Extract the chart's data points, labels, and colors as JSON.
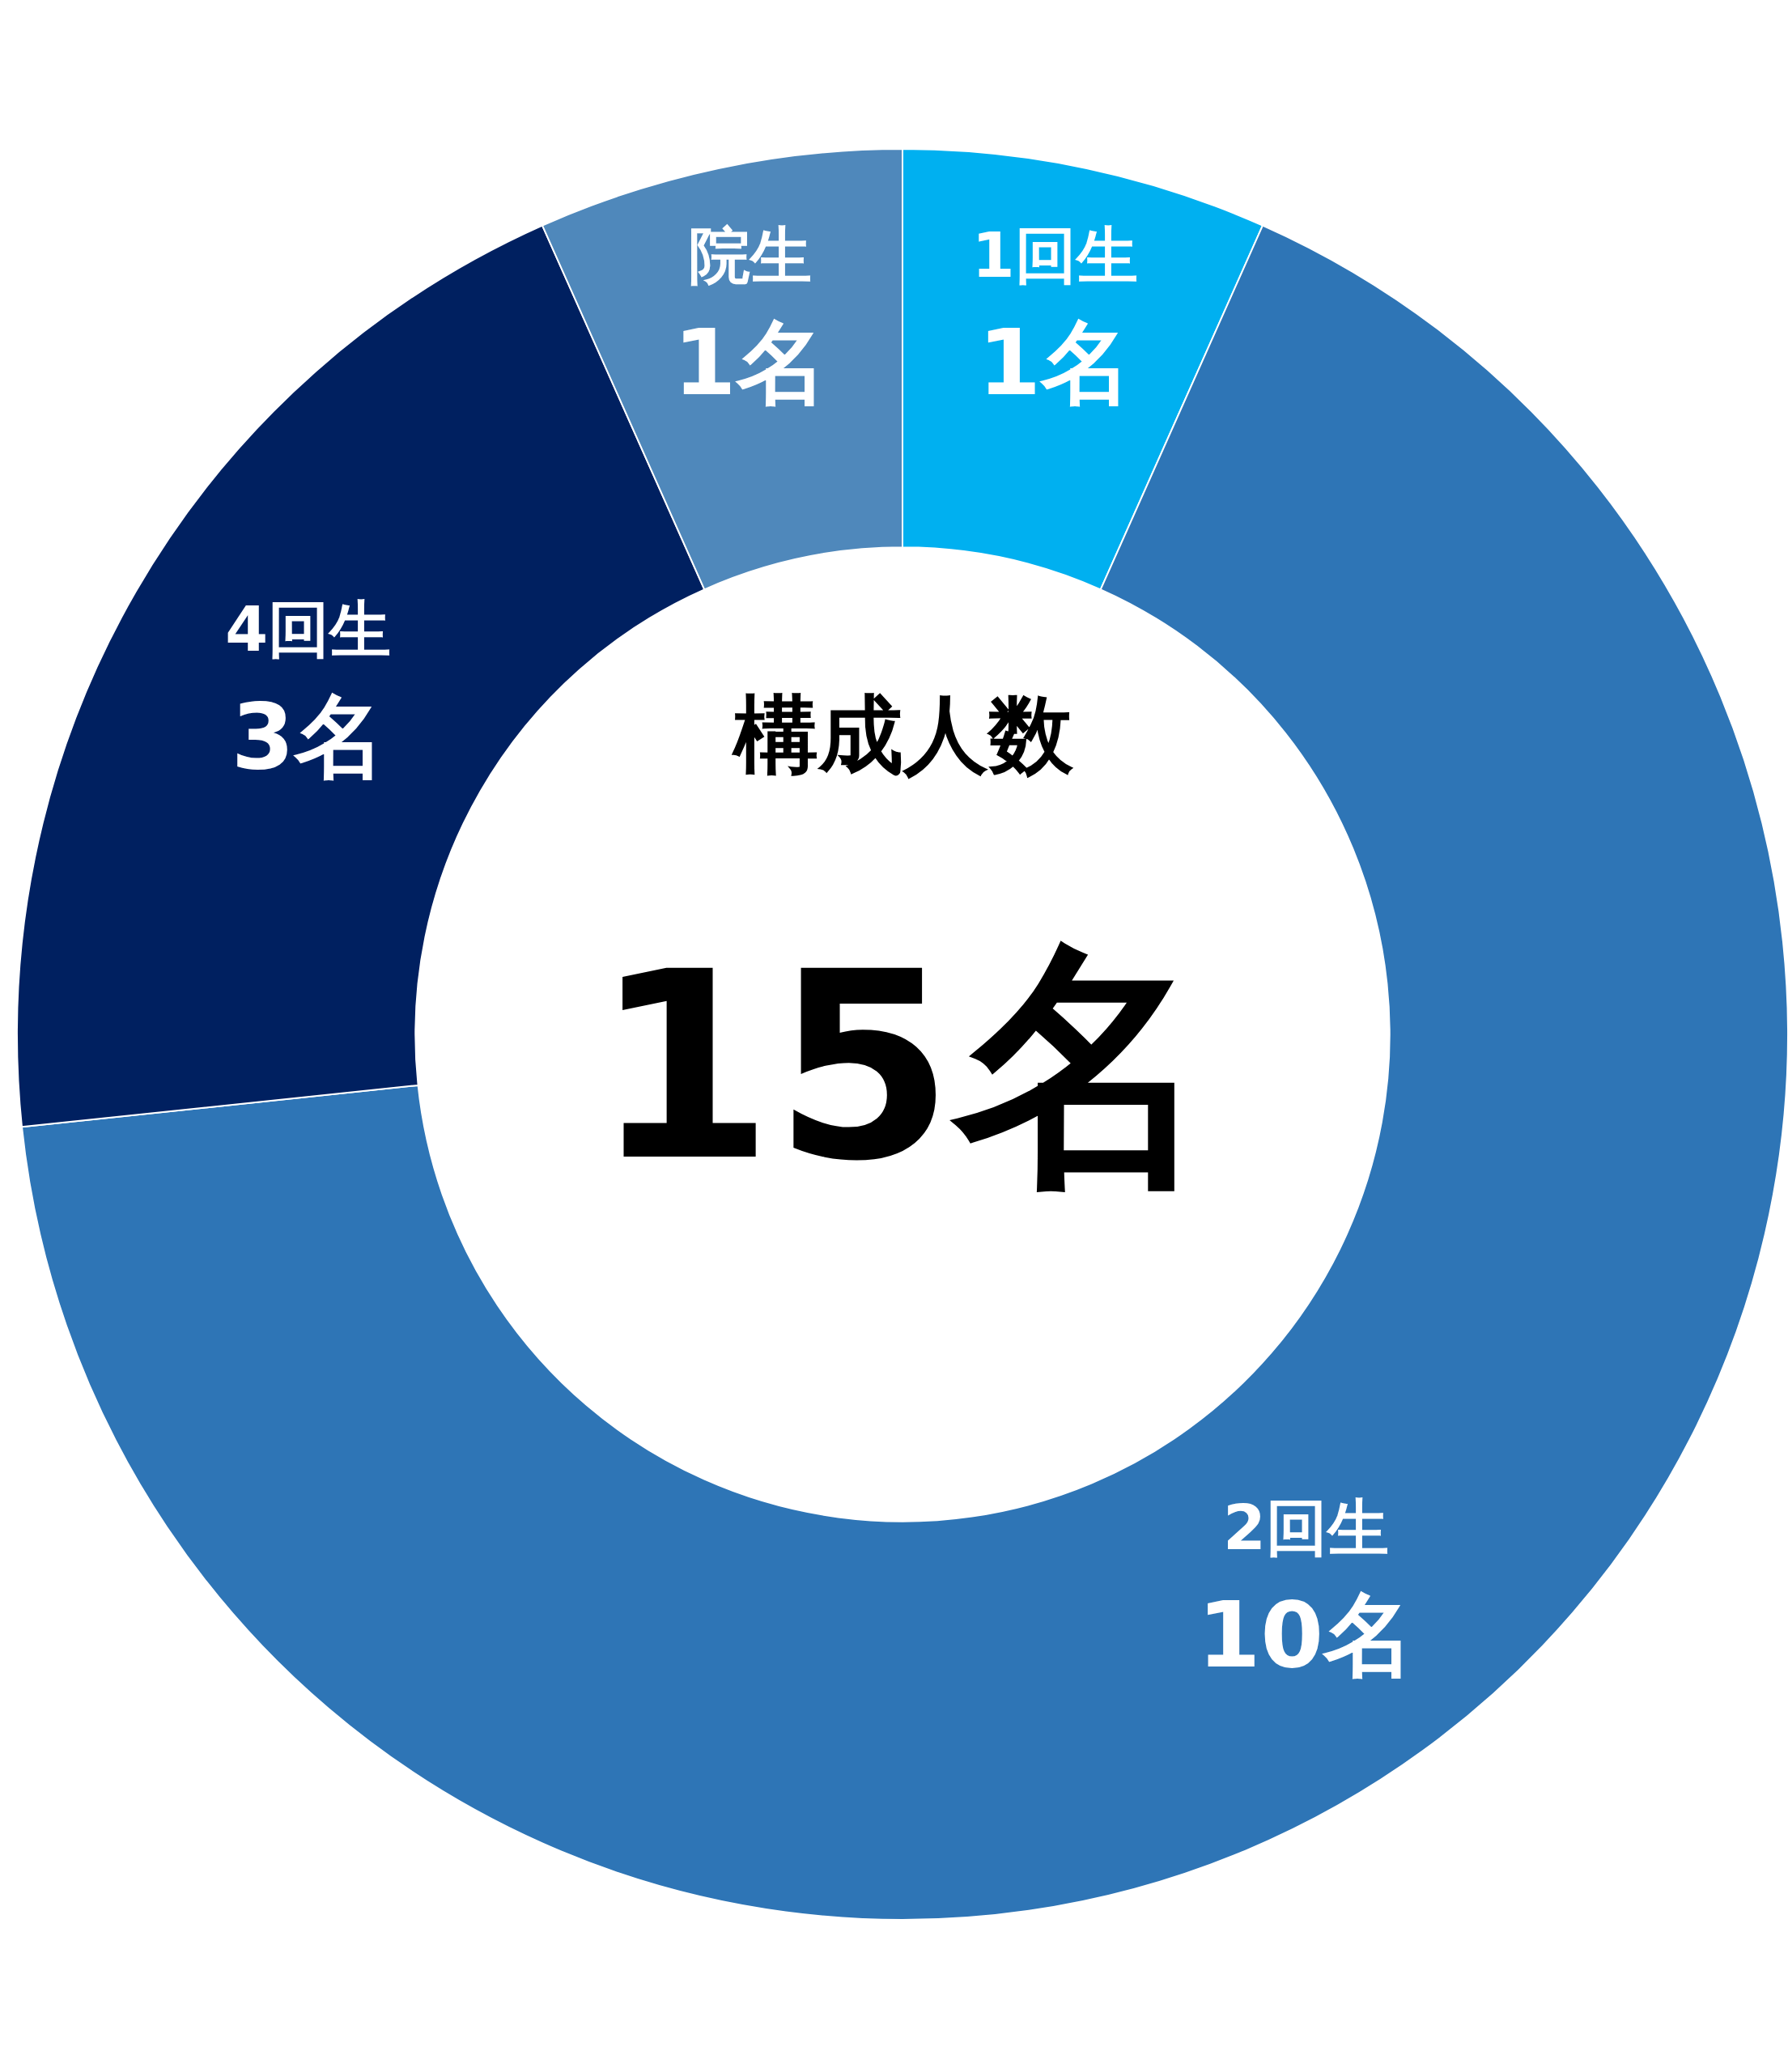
{
  "chart_data": {
    "type": "donut",
    "categories": [
      "1回生",
      "2回生",
      "4回生",
      "院生"
    ],
    "values": [
      1,
      10,
      3,
      1
    ],
    "colors": [
      "#00b0f0",
      "#2e75b6",
      "#002060",
      "#4f88bb"
    ],
    "value_labels": [
      "1名",
      "10名",
      "3名",
      "1名"
    ],
    "annotations": [
      "構成人数",
      "15名"
    ]
  }
}
